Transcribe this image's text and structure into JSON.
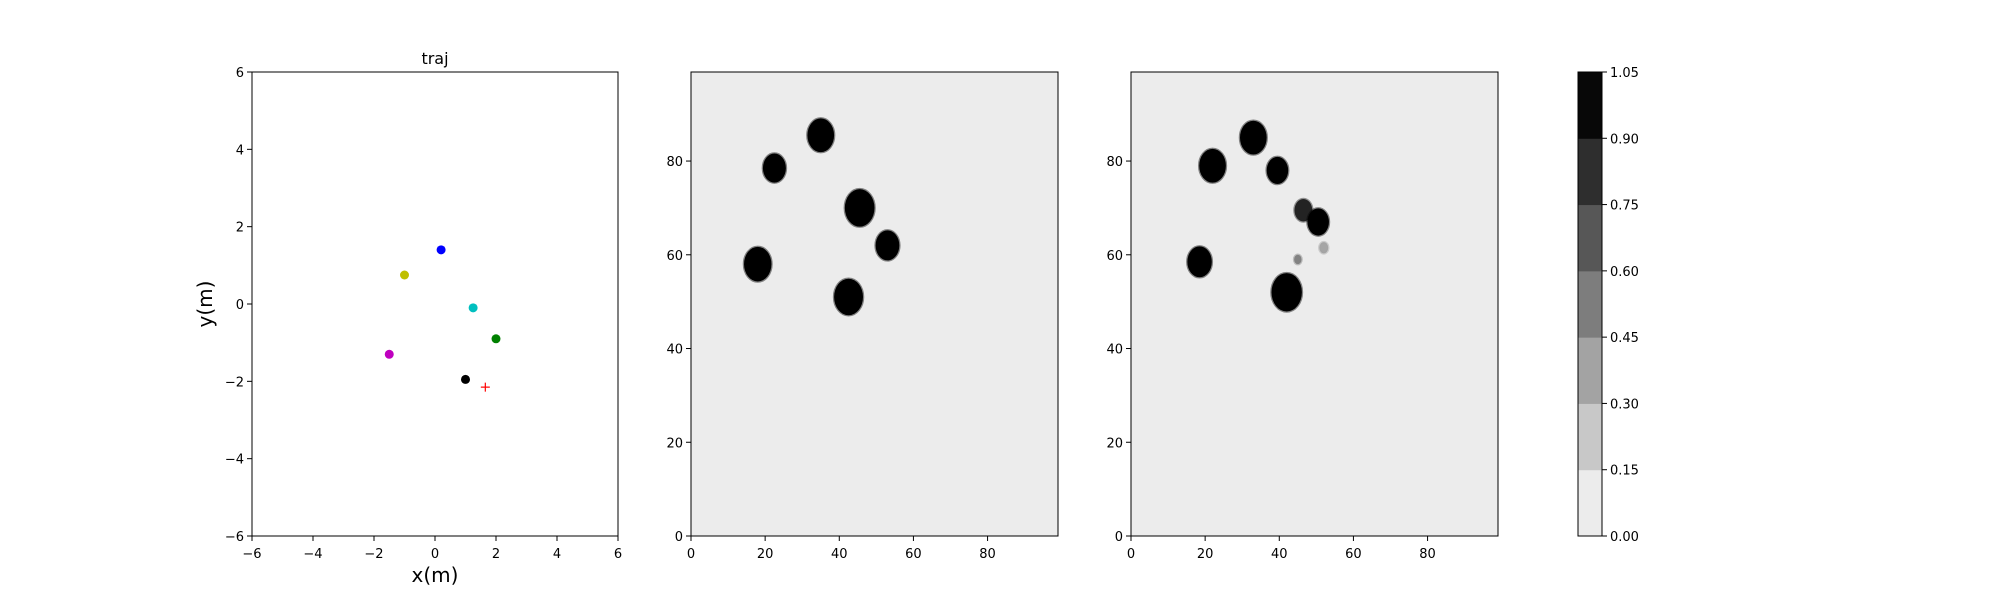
{
  "colors": {
    "background": "#ffffff",
    "axes_edge": "#000000",
    "cmap_low": "#ececec",
    "cmap_high": "#000000",
    "goal_marker": "#ff0000"
  },
  "chart_data": [
    {
      "type": "scatter",
      "title": "traj",
      "xlabel": "x(m)",
      "ylabel": "y(m)",
      "xlim": [
        -6,
        6
      ],
      "ylim": [
        -6,
        6
      ],
      "xticks": [
        -6,
        -4,
        -2,
        0,
        2,
        4,
        6
      ],
      "yticks": [
        -6,
        -4,
        -2,
        0,
        2,
        4,
        6
      ],
      "grid": false,
      "points": [
        {
          "x": 0.2,
          "y": 1.4,
          "color": "#0000ff",
          "marker": "circle"
        },
        {
          "x": -1.0,
          "y": 0.75,
          "color": "#bfbf00",
          "marker": "circle"
        },
        {
          "x": 1.25,
          "y": -0.1,
          "color": "#00bfbf",
          "marker": "circle"
        },
        {
          "x": 2.0,
          "y": -0.9,
          "color": "#008000",
          "marker": "circle"
        },
        {
          "x": -1.5,
          "y": -1.3,
          "color": "#bf00bf",
          "marker": "circle"
        },
        {
          "x": 1.0,
          "y": -1.95,
          "color": "#000000",
          "marker": "circle"
        },
        {
          "x": 1.65,
          "y": -2.15,
          "color": "#ff0000",
          "marker": "plus"
        }
      ]
    },
    {
      "type": "heatmap",
      "xlim": [
        0,
        99
      ],
      "ylim": [
        0,
        99
      ],
      "xticks": [
        0,
        20,
        40,
        60,
        80
      ],
      "yticks": [
        0,
        20,
        40,
        60,
        80
      ],
      "grid": false,
      "blobs": [
        {
          "x": 35,
          "y": 85.5,
          "r": 3.6,
          "value": 1.0
        },
        {
          "x": 22.5,
          "y": 78.5,
          "r": 3.1,
          "value": 1.0
        },
        {
          "x": 45.5,
          "y": 70,
          "r": 4.0,
          "value": 1.0
        },
        {
          "x": 53,
          "y": 62,
          "r": 3.2,
          "value": 1.0
        },
        {
          "x": 18,
          "y": 58,
          "r": 3.7,
          "value": 1.0
        },
        {
          "x": 42.5,
          "y": 51,
          "r": 3.9,
          "value": 1.0
        }
      ]
    },
    {
      "type": "heatmap",
      "xlim": [
        0,
        99
      ],
      "ylim": [
        0,
        99
      ],
      "xticks": [
        0,
        20,
        40,
        60,
        80
      ],
      "yticks": [
        0,
        20,
        40,
        60,
        80
      ],
      "grid": false,
      "blobs": [
        {
          "x": 33,
          "y": 85,
          "r": 3.6,
          "value": 1.0
        },
        {
          "x": 22,
          "y": 79,
          "r": 3.6,
          "value": 1.0
        },
        {
          "x": 39.5,
          "y": 78,
          "r": 2.9,
          "value": 1.0
        },
        {
          "x": 46.5,
          "y": 69.5,
          "r": 2.4,
          "value": 0.85
        },
        {
          "x": 50.5,
          "y": 67,
          "r": 2.9,
          "value": 1.0
        },
        {
          "x": 52,
          "y": 61.5,
          "r": 1.2,
          "value": 0.3
        },
        {
          "x": 45,
          "y": 59,
          "r": 1.0,
          "value": 0.45
        },
        {
          "x": 18.5,
          "y": 58.5,
          "r": 3.3,
          "value": 1.0
        },
        {
          "x": 42,
          "y": 52,
          "r": 4.1,
          "value": 1.0
        }
      ]
    }
  ],
  "colorbar": {
    "ticks": [
      "0.00",
      "0.15",
      "0.30",
      "0.45",
      "0.60",
      "0.75",
      "0.90",
      "1.05"
    ],
    "levels": [
      "#ececec",
      "#c8c8c8",
      "#a3a3a3",
      "#7d7d7d",
      "#575757",
      "#2e2e2e",
      "#080808"
    ]
  }
}
